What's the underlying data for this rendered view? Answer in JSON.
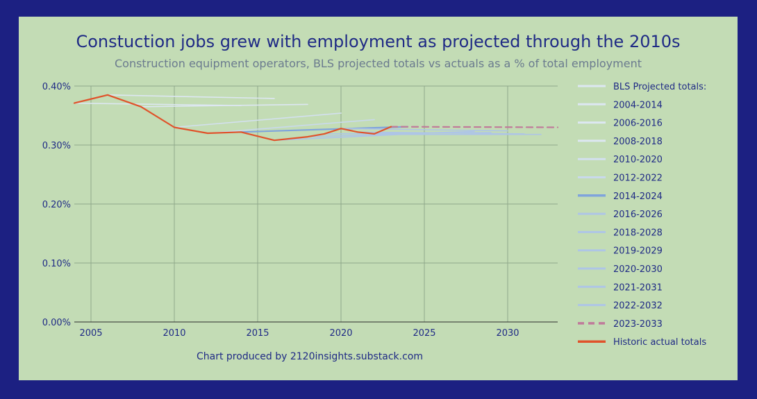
{
  "chart_data": {
    "type": "line",
    "title": "Constuction jobs grew with employment as projected through the 2010s",
    "subtitle": "Construction equipment operators, BLS projected totals vs actuals as a % of total employment",
    "credit": "Chart produced by 2120insights.substack.com",
    "xlim": [
      2004,
      2033
    ],
    "ylim": [
      0,
      0.4
    ],
    "y_ticks": [
      {
        "value": 0.4,
        "label": "0.40%"
      },
      {
        "value": 0.3,
        "label": "0.30%"
      },
      {
        "value": 0.2,
        "label": "0.20%"
      },
      {
        "value": 0.1,
        "label": "0.10%"
      },
      {
        "value": 0.0,
        "label": "0.00%"
      }
    ],
    "x_ticks": [
      {
        "value": 2005,
        "label": "2005"
      },
      {
        "value": 2010,
        "label": "2010"
      },
      {
        "value": 2015,
        "label": "2015"
      },
      {
        "value": 2020,
        "label": "2020"
      },
      {
        "value": 2025,
        "label": "2025"
      },
      {
        "value": 2030,
        "label": "2030"
      }
    ],
    "grid": true,
    "legend_position": "right",
    "legend_header": {
      "name": "BLS Projected totals:",
      "color": "#dde7f2"
    },
    "series": [
      {
        "name": "2004-2014",
        "color": "#dde7f2",
        "style": "solid",
        "points": [
          [
            2004,
            0.371
          ],
          [
            2014,
            0.367
          ]
        ]
      },
      {
        "name": "2006-2016",
        "color": "#dde7f2",
        "style": "solid",
        "points": [
          [
            2006,
            0.385
          ],
          [
            2016,
            0.379
          ]
        ]
      },
      {
        "name": "2008-2018",
        "color": "#dde7f2",
        "style": "solid",
        "points": [
          [
            2008,
            0.365
          ],
          [
            2018,
            0.369
          ]
        ]
      },
      {
        "name": "2010-2020",
        "color": "#d3e0ef",
        "style": "solid",
        "points": [
          [
            2010,
            0.33
          ],
          [
            2020,
            0.354
          ]
        ]
      },
      {
        "name": "2012-2022",
        "color": "#c9d9ec",
        "style": "solid",
        "points": [
          [
            2012,
            0.32
          ],
          [
            2022,
            0.343
          ]
        ]
      },
      {
        "name": "2014-2024",
        "color": "#7fa4dc",
        "style": "solid",
        "width": 2.2,
        "points": [
          [
            2014,
            0.322
          ],
          [
            2024,
            0.331
          ]
        ]
      },
      {
        "name": "2016-2026",
        "color": "#aec5e6",
        "style": "solid",
        "points": [
          [
            2016,
            0.308
          ],
          [
            2026,
            0.321
          ]
        ]
      },
      {
        "name": "2018-2028",
        "color": "#aec5e6",
        "style": "solid",
        "points": [
          [
            2018,
            0.314
          ],
          [
            2028,
            0.323
          ]
        ]
      },
      {
        "name": "2019-2029",
        "color": "#aec5e6",
        "style": "solid",
        "points": [
          [
            2019,
            0.319
          ],
          [
            2029,
            0.321
          ]
        ]
      },
      {
        "name": "2020-2030",
        "color": "#aec5e6",
        "style": "solid",
        "points": [
          [
            2020,
            0.328
          ],
          [
            2030,
            0.324
          ]
        ]
      },
      {
        "name": "2021-2031",
        "color": "#aec5e6",
        "style": "solid",
        "points": [
          [
            2021,
            0.322
          ],
          [
            2031,
            0.319
          ]
        ]
      },
      {
        "name": "2022-2032",
        "color": "#aec5e6",
        "style": "solid",
        "points": [
          [
            2022,
            0.318
          ],
          [
            2032,
            0.318
          ]
        ]
      },
      {
        "name": "2023-2033",
        "color": "#c07a9a",
        "style": "dashed",
        "width": 2.2,
        "points": [
          [
            2023,
            0.331
          ],
          [
            2033,
            0.33
          ]
        ]
      },
      {
        "name": "Historic actual totals",
        "color": "#e0522a",
        "style": "solid",
        "width": 2.2,
        "points": [
          [
            2004,
            0.371
          ],
          [
            2006,
            0.385
          ],
          [
            2008,
            0.365
          ],
          [
            2010,
            0.33
          ],
          [
            2012,
            0.32
          ],
          [
            2014,
            0.322
          ],
          [
            2016,
            0.308
          ],
          [
            2018,
            0.314
          ],
          [
            2019,
            0.319
          ],
          [
            2020,
            0.328
          ],
          [
            2021,
            0.322
          ],
          [
            2022,
            0.319
          ],
          [
            2023,
            0.331
          ]
        ]
      }
    ]
  }
}
